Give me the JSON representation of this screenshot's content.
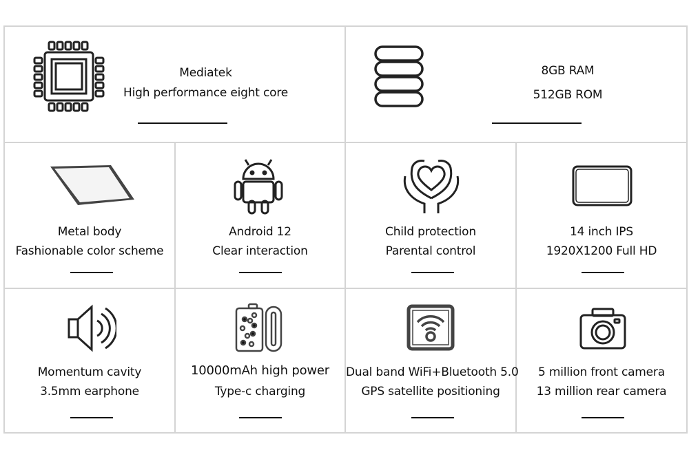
{
  "features": [
    {
      "icon": "cpu-chip-icon",
      "line1": "Mediatek",
      "line2": "High performance  eight core"
    },
    {
      "icon": "storage-database-icon",
      "line1": "8GB RAM",
      "line2": "512GB ROM"
    },
    {
      "icon": "tablet-metal-body-icon",
      "line1": "Metal body",
      "line2": "Fashionable color scheme"
    },
    {
      "icon": "android-robot-icon",
      "line1": "Android 12",
      "line2": "Clear interaction"
    },
    {
      "icon": "heart-hands-icon",
      "line1": "Child protection",
      "line2": "Parental control"
    },
    {
      "icon": "screen-display-icon",
      "line1": "14 inch IPS",
      "line2": "1920X1200 Full HD"
    },
    {
      "icon": "speaker-icon",
      "line1": "Momentum cavity",
      "line2": "3.5mm earphone"
    },
    {
      "icon": "battery-typec-icon",
      "line1": "10000mAh high power",
      "line2": "Type-c charging"
    },
    {
      "icon": "wifi-icon",
      "line1": "Dual band WiFi+Bluetooth 5.0",
      "line2": "GPS satellite positioning"
    },
    {
      "icon": "camera-icon",
      "line1": "5 million front camera",
      "line2": "13 million rear camera"
    }
  ]
}
